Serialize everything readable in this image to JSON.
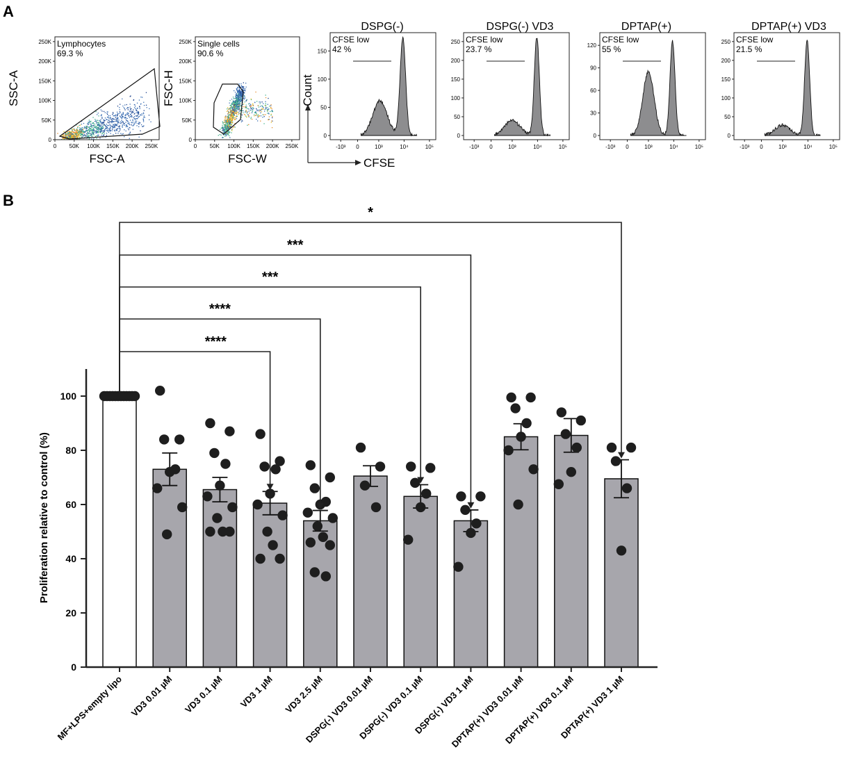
{
  "figure": {
    "panel_a_label": "A",
    "panel_b_label": "B"
  },
  "chart_data": [
    {
      "type": "scatter",
      "name": "lymphocyte-gate",
      "xlabel": "FSC-A",
      "ylabel": "SSC-A",
      "gate_label": "Lymphocytes",
      "gate_value": "69.3 %",
      "x_ticks": [
        "0",
        "50K",
        "100K",
        "150K",
        "200K",
        "250K"
      ],
      "y_ticks": [
        "0",
        "50K",
        "100K",
        "150K",
        "200K",
        "250K"
      ],
      "xlim": [
        0,
        270000
      ],
      "ylim": [
        0,
        262144
      ]
    },
    {
      "type": "scatter",
      "name": "single-cell-gate",
      "xlabel": "FSC-W",
      "ylabel": "FSC-H",
      "gate_label": "Single cells",
      "gate_value": "90.6 %",
      "x_ticks": [
        "0",
        "50K",
        "100K",
        "150K",
        "200K",
        "250K"
      ],
      "y_ticks": [
        "0",
        "50K",
        "100K",
        "150K",
        "200K",
        "250K"
      ],
      "xlim": [
        0,
        270000
      ],
      "ylim": [
        0,
        262144
      ]
    },
    {
      "type": "area",
      "name": "cfse-histograms",
      "xlabel": "CFSE",
      "ylabel": "Count",
      "x_ticks": [
        "-10³",
        "0",
        "10³",
        "10⁴",
        "10⁵"
      ],
      "gate_label": "CFSE low",
      "panels": [
        {
          "title": "DSPG(-)",
          "cfse_low": "42 %",
          "y_ticks": [
            "0",
            "50",
            "100",
            "150"
          ],
          "ymax": 180,
          "peaks": [
            {
              "x": 3.05,
              "h": 62,
              "w": 0.28
            },
            {
              "x": 3.95,
              "h": 173,
              "w": 0.11
            }
          ]
        },
        {
          "title": "DSPG(-) VD3",
          "cfse_low": "23.7 %",
          "y_ticks": [
            "0",
            "50",
            "100",
            "150",
            "200",
            "250"
          ],
          "ymax": 270,
          "peaks": [
            {
              "x": 3.0,
              "h": 40,
              "w": 0.3
            },
            {
              "x": 3.97,
              "h": 262,
              "w": 0.1
            }
          ]
        },
        {
          "title": "DPTAP(+)",
          "cfse_low": "55 %",
          "y_ticks": [
            "0",
            "30",
            "60",
            "90",
            "120"
          ],
          "ymax": 135,
          "peaks": [
            {
              "x": 3.0,
              "h": 85,
              "w": 0.22
            },
            {
              "x": 3.95,
              "h": 125,
              "w": 0.1
            }
          ]
        },
        {
          "title": "DPTAP(+) VD3",
          "cfse_low": "21.5 %",
          "y_ticks": [
            "0",
            "50",
            "100",
            "150",
            "200",
            "250"
          ],
          "ymax": 270,
          "peaks": [
            {
              "x": 3.0,
              "h": 28,
              "w": 0.3
            },
            {
              "x": 3.97,
              "h": 255,
              "w": 0.1
            }
          ]
        }
      ]
    },
    {
      "type": "bar",
      "name": "proliferation",
      "ylabel": "Proliferation relative to control (%)",
      "ylim": [
        0,
        110
      ],
      "y_ticks": [
        "0",
        "20",
        "40",
        "60",
        "80",
        "100"
      ],
      "categories": [
        "MF+LPS+empty lipo",
        "VD3 0.01 µM",
        "VD3 0.1 µM",
        "VD3 1 µM",
        "VD3 2.5 µM",
        "DSPG(-) VD3 0.01 µM",
        "DSPG(-) VD3 0.1 µM",
        "DSPG(-) VD3 1 µM",
        "DPTAP(+) VD3 0.01 µM",
        "DPTAP(+) VD3 0.1 µM",
        "DPTAP(+) VD3 1 µM"
      ],
      "means": [
        100,
        73,
        65.5,
        60.5,
        54,
        70.5,
        63,
        54,
        85,
        85.5,
        69.5
      ],
      "sem": [
        0,
        6,
        4.5,
        4.3,
        3.8,
        3.8,
        4.3,
        4,
        4.8,
        6.2,
        7
      ],
      "bar_colors": [
        "#ffffff",
        "#a7a6ac",
        "#a7a6ac",
        "#a7a6ac",
        "#a7a6ac",
        "#a7a6ac",
        "#a7a6ac",
        "#a7a6ac",
        "#a7a6ac",
        "#a7a6ac",
        "#a7a6ac"
      ],
      "points": [
        [
          100,
          100,
          100,
          100,
          100,
          100,
          100,
          100,
          100,
          100,
          100,
          100
        ],
        [
          102,
          84,
          84,
          73,
          72,
          66,
          59,
          49
        ],
        [
          90,
          87,
          79,
          75,
          67,
          63,
          59,
          55,
          50,
          50,
          50
        ],
        [
          86,
          76,
          74,
          73,
          64,
          60,
          56,
          50,
          45,
          40,
          40
        ],
        [
          74.5,
          70,
          66,
          61,
          60,
          57,
          55,
          52,
          48,
          46,
          45,
          35,
          33.5
        ],
        [
          81,
          74,
          67,
          59
        ],
        [
          74,
          73.5,
          68,
          64,
          59,
          47
        ],
        [
          63,
          63,
          58,
          53,
          49.5,
          37
        ],
        [
          99.5,
          99.5,
          95.5,
          90,
          85,
          80,
          73,
          60
        ],
        [
          94,
          91,
          86,
          81,
          72,
          67.5
        ],
        [
          81,
          81,
          76,
          66,
          43
        ]
      ],
      "comparisons": [
        {
          "from": 0,
          "to": 3,
          "label": "****"
        },
        {
          "from": 0,
          "to": 4,
          "label": "****"
        },
        {
          "from": 0,
          "to": 6,
          "label": "***"
        },
        {
          "from": 0,
          "to": 7,
          "label": "***"
        },
        {
          "from": 0,
          "to": 10,
          "label": "*"
        }
      ]
    }
  ]
}
